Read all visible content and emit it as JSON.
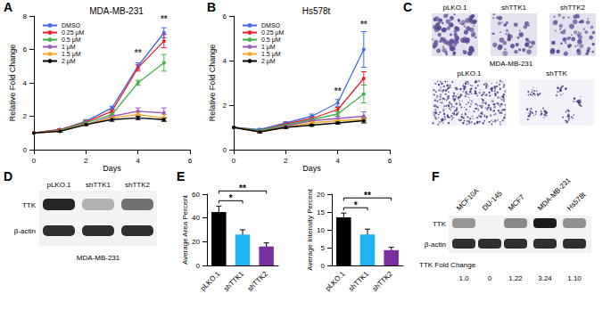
{
  "chart_data": [
    {
      "type": "line",
      "title": "MDA-MB-231",
      "x_label": "Days",
      "y_label": "Relative Fold Change",
      "x": [
        0,
        1,
        2,
        3,
        4,
        5
      ],
      "xlim": [
        0,
        6
      ],
      "xticks": [
        0,
        2,
        4,
        6
      ],
      "ylim": [
        0,
        8
      ],
      "yticks": [
        0,
        2,
        4,
        6,
        8
      ],
      "grid": false,
      "legend": "upper left",
      "marker": "circle",
      "series": [
        {
          "name": "DMSO",
          "color": "#4169e1",
          "values": [
            1,
            1.2,
            1.7,
            2.5,
            5.0,
            7.0
          ],
          "errors": [
            0,
            0.05,
            0.1,
            0.1,
            0.2,
            0.3
          ]
        },
        {
          "name": "0.25 μM",
          "color": "#e8202a",
          "values": [
            1,
            1.2,
            1.65,
            2.3,
            4.9,
            6.5
          ],
          "errors": [
            0,
            0.05,
            0.1,
            0.1,
            0.2,
            0.4
          ]
        },
        {
          "name": "0.5 μM",
          "color": "#3cb44b",
          "values": [
            1,
            1.15,
            1.6,
            2.1,
            4.0,
            5.2
          ],
          "errors": [
            0,
            0.05,
            0.1,
            0.1,
            0.15,
            0.5
          ]
        },
        {
          "name": "1 μM",
          "color": "#9b59b6",
          "values": [
            1,
            1.1,
            1.5,
            2.0,
            2.3,
            2.2
          ],
          "errors": [
            0,
            0.05,
            0.05,
            0.1,
            0.2,
            0.3
          ]
        },
        {
          "name": "1.5 μM",
          "color": "#f5a623",
          "values": [
            1,
            1.1,
            1.5,
            1.9,
            2.1,
            1.9
          ],
          "errors": [
            0,
            0.05,
            0.05,
            0.1,
            0.1,
            0.2
          ]
        },
        {
          "name": "2 μM",
          "color": "#000000",
          "values": [
            1,
            1.1,
            1.5,
            1.8,
            1.9,
            1.8
          ],
          "errors": [
            0,
            0.05,
            0.05,
            0.1,
            0.1,
            0.1
          ]
        }
      ],
      "annotations": [
        {
          "x": 4,
          "y": 5.5,
          "text": "**"
        },
        {
          "x": 5,
          "y": 7.5,
          "text": "**"
        }
      ]
    },
    {
      "type": "line",
      "title": "Hs578t",
      "x_label": "Days",
      "y_label": "Relative Fold Change",
      "x": [
        0,
        1,
        2,
        3,
        4,
        5
      ],
      "xlim": [
        0,
        6
      ],
      "xticks": [
        0,
        2,
        4,
        6
      ],
      "ylim": [
        0,
        6
      ],
      "yticks": [
        0,
        2,
        4,
        6
      ],
      "grid": false,
      "legend": "upper left",
      "marker": "circle",
      "series": [
        {
          "name": "DMSO",
          "color": "#4169e1",
          "values": [
            1,
            0.9,
            1.2,
            1.5,
            2.1,
            4.5
          ],
          "errors": [
            0,
            0.05,
            0.05,
            0.1,
            0.15,
            0.8
          ]
        },
        {
          "name": "0.25 μM",
          "color": "#e8202a",
          "values": [
            1,
            0.85,
            1.15,
            1.4,
            1.8,
            3.2
          ],
          "errors": [
            0,
            0.05,
            0.05,
            0.1,
            0.1,
            0.3
          ]
        },
        {
          "name": "0.5 μM",
          "color": "#3cb44b",
          "values": [
            1,
            0.85,
            1.1,
            1.35,
            1.6,
            2.5
          ],
          "errors": [
            0,
            0.05,
            0.05,
            0.1,
            0.1,
            0.4
          ]
        },
        {
          "name": "1 μM",
          "color": "#9b59b6",
          "values": [
            1,
            0.8,
            1.05,
            1.3,
            1.4,
            1.5
          ],
          "errors": [
            0,
            0.05,
            0.05,
            0.05,
            0.1,
            0.2
          ]
        },
        {
          "name": "1.5 μM",
          "color": "#f5a623",
          "values": [
            1,
            0.8,
            1.0,
            1.2,
            1.3,
            1.35
          ],
          "errors": [
            0,
            0.05,
            0.05,
            0.05,
            0.1,
            0.1
          ]
        },
        {
          "name": "2 μM",
          "color": "#000000",
          "values": [
            1,
            0.8,
            1.0,
            1.1,
            1.2,
            1.3
          ],
          "errors": [
            0,
            0.05,
            0.05,
            0.05,
            0.05,
            0.1
          ]
        }
      ],
      "annotations": [
        {
          "x": 4,
          "y": 2.4,
          "text": "**"
        },
        {
          "x": 5,
          "y": 5.4,
          "text": "**"
        }
      ]
    },
    {
      "type": "bar",
      "y_label": "Average Area Percent",
      "categories": [
        "pLKO.1",
        "shTTK1",
        "shTTK2"
      ],
      "values": [
        45,
        26,
        16
      ],
      "errors": [
        5,
        4,
        3
      ],
      "colors": [
        "#000000",
        "#1eb4f0",
        "#7b2f9e"
      ],
      "ylim": [
        0,
        60
      ],
      "yticks": [
        0,
        20,
        40,
        60
      ],
      "grid": false,
      "comparisons": [
        {
          "from": "pLKO.1",
          "to": "shTTK1",
          "text": "*"
        },
        {
          "from": "pLKO.1",
          "to": "shTTK2",
          "text": "**"
        }
      ]
    },
    {
      "type": "bar",
      "y_label": "Average Intensity Percent",
      "categories": [
        "pLKO.1",
        "shTTK1",
        "shTTK2"
      ],
      "values": [
        13.5,
        8.7,
        4.3
      ],
      "errors": [
        1.2,
        1.5,
        0.8
      ],
      "colors": [
        "#000000",
        "#1eb4f0",
        "#7b2f9e"
      ],
      "ylim": [
        0,
        20
      ],
      "yticks": [
        0,
        5,
        10,
        15,
        20
      ],
      "grid": false,
      "comparisons": [
        {
          "from": "pLKO.1",
          "to": "shTTK1",
          "text": "*"
        },
        {
          "from": "pLKO.1",
          "to": "shTTK2",
          "text": "**"
        }
      ]
    }
  ],
  "panel_letters": [
    "A",
    "B",
    "C",
    "D",
    "E",
    "F"
  ],
  "panel_C": {
    "top_row": {
      "labels": [
        "pLKO.1",
        "shTTK1",
        "shTTK2"
      ],
      "caption": "MDA-MB-231"
    },
    "bottom_row": {
      "labels": [
        "pLKO.1",
        "shTTK"
      ]
    }
  },
  "panel_D": {
    "lanes": [
      "pLKO.1",
      "shTTK1",
      "shTTK2"
    ],
    "rows": [
      "TTK",
      "β-actin"
    ],
    "caption": "MDA-MB-231"
  },
  "panel_F": {
    "lanes": [
      "MCF10A",
      "DU-145",
      "MCF7",
      "MDA-MB-231",
      "Hs578t"
    ],
    "rows": [
      "TTK",
      "β-actin"
    ],
    "fold_change_label": "TTK Fold Change",
    "fold_change": [
      {
        "value": 1.0,
        "label": "1.0"
      },
      {
        "value": 0,
        "label": "0"
      },
      {
        "value": 1.22,
        "label": "1.22"
      },
      {
        "value": 3.24,
        "label": "3.24"
      },
      {
        "value": 1.1,
        "label": "1.10"
      }
    ]
  }
}
